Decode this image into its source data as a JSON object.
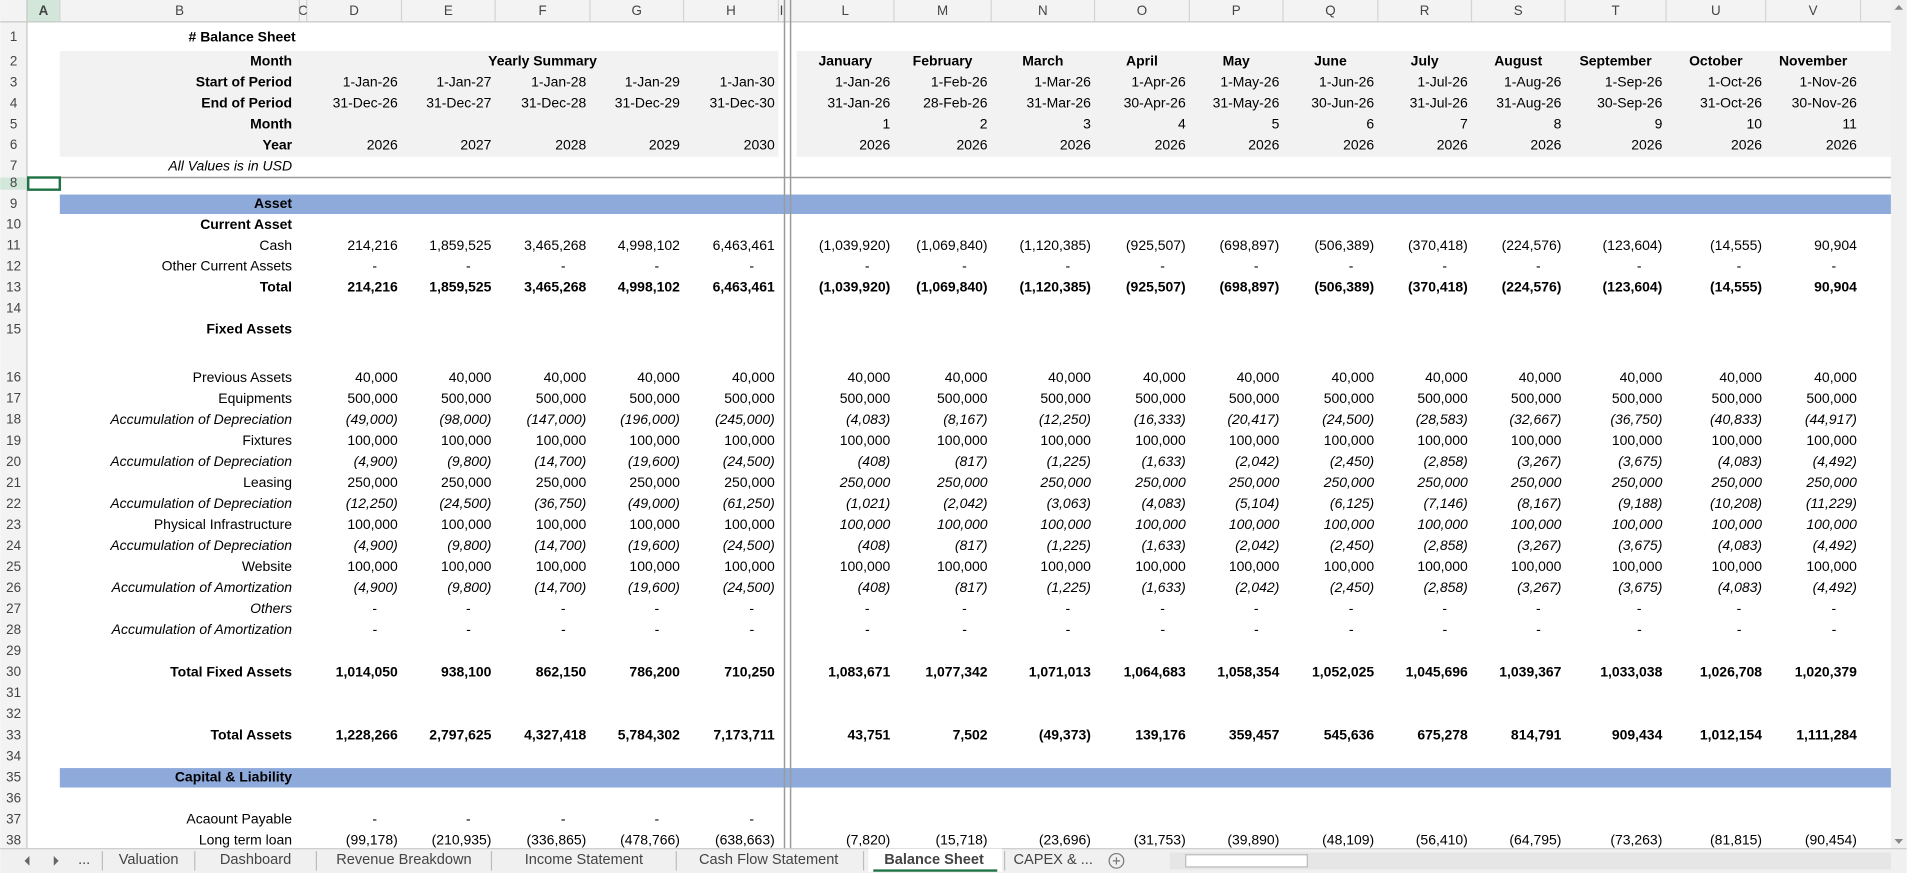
{
  "column_headers": [
    "A",
    "B",
    "C",
    "D",
    "E",
    "F",
    "G",
    "H",
    "I",
    "L",
    "M",
    "N",
    "O",
    "P",
    "Q",
    "R",
    "S",
    "T",
    "U",
    "V"
  ],
  "rows": [
    {
      "n": 1,
      "label": "# Balance Sheet"
    },
    {
      "n": 2,
      "label": "Month",
      "span": "Yearly Summary",
      "monthly": [
        "January",
        "February",
        "March",
        "April",
        "May",
        "June",
        "July",
        "August",
        "September",
        "October",
        "November"
      ]
    },
    {
      "n": 3,
      "label": "Start of Period",
      "yearly": [
        "1-Jan-26",
        "1-Jan-27",
        "1-Jan-28",
        "1-Jan-29",
        "1-Jan-30"
      ],
      "monthly": [
        "1-Jan-26",
        "1-Feb-26",
        "1-Mar-26",
        "1-Apr-26",
        "1-May-26",
        "1-Jun-26",
        "1-Jul-26",
        "1-Aug-26",
        "1-Sep-26",
        "1-Oct-26",
        "1-Nov-26"
      ]
    },
    {
      "n": 4,
      "label": "End of Period",
      "yearly": [
        "31-Dec-26",
        "31-Dec-27",
        "31-Dec-28",
        "31-Dec-29",
        "31-Dec-30"
      ],
      "monthly": [
        "31-Jan-26",
        "28-Feb-26",
        "31-Mar-26",
        "30-Apr-26",
        "31-May-26",
        "30-Jun-26",
        "31-Jul-26",
        "31-Aug-26",
        "30-Sep-26",
        "31-Oct-26",
        "30-Nov-26"
      ]
    },
    {
      "n": 5,
      "label": "Month",
      "monthly": [
        "1",
        "2",
        "3",
        "4",
        "5",
        "6",
        "7",
        "8",
        "9",
        "10",
        "11"
      ]
    },
    {
      "n": 6,
      "label": "Year",
      "yearly": [
        "2026",
        "2027",
        "2028",
        "2029",
        "2030"
      ],
      "monthly": [
        "2026",
        "2026",
        "2026",
        "2026",
        "2026",
        "2026",
        "2026",
        "2026",
        "2026",
        "2026",
        "2026"
      ]
    },
    {
      "n": 7,
      "label": "All Values is in USD"
    },
    {
      "n": 8
    },
    {
      "n": 9,
      "label": "Asset"
    },
    {
      "n": 10,
      "label": "Current Asset"
    },
    {
      "n": 11,
      "label": "Cash",
      "yearly": [
        "214,216",
        "1,859,525",
        "3,465,268",
        "4,998,102",
        "6,463,461"
      ],
      "monthly": [
        "(1,039,920)",
        "(1,069,840)",
        "(1,120,385)",
        "(925,507)",
        "(698,897)",
        "(506,389)",
        "(370,418)",
        "(224,576)",
        "(123,604)",
        "(14,555)",
        "90,904"
      ]
    },
    {
      "n": 12,
      "label": "Other Current Assets",
      "yearly": [
        "-",
        "-",
        "-",
        "-",
        "-"
      ],
      "monthly": [
        "-",
        "-",
        "-",
        "-",
        "-",
        "-",
        "-",
        "-",
        "-",
        "-",
        "-"
      ]
    },
    {
      "n": 13,
      "label": "Total",
      "yearly": [
        "214,216",
        "1,859,525",
        "3,465,268",
        "4,998,102",
        "6,463,461"
      ],
      "monthly": [
        "(1,039,920)",
        "(1,069,840)",
        "(1,120,385)",
        "(925,507)",
        "(698,897)",
        "(506,389)",
        "(370,418)",
        "(224,576)",
        "(123,604)",
        "(14,555)",
        "90,904"
      ]
    },
    {
      "n": 14
    },
    {
      "n": 15,
      "label": "Fixed Assets"
    },
    {
      "n": 16,
      "label": "Previous Assets",
      "yearly": [
        "40,000",
        "40,000",
        "40,000",
        "40,000",
        "40,000"
      ],
      "monthly": [
        "40,000",
        "40,000",
        "40,000",
        "40,000",
        "40,000",
        "40,000",
        "40,000",
        "40,000",
        "40,000",
        "40,000",
        "40,000"
      ]
    },
    {
      "n": 17,
      "label": "Equipments",
      "yearly": [
        "500,000",
        "500,000",
        "500,000",
        "500,000",
        "500,000"
      ],
      "monthly": [
        "500,000",
        "500,000",
        "500,000",
        "500,000",
        "500,000",
        "500,000",
        "500,000",
        "500,000",
        "500,000",
        "500,000",
        "500,000"
      ]
    },
    {
      "n": 18,
      "label": "Accumulation of Depreciation",
      "yearly": [
        "(49,000)",
        "(98,000)",
        "(147,000)",
        "(196,000)",
        "(245,000)"
      ],
      "monthly": [
        "(4,083)",
        "(8,167)",
        "(12,250)",
        "(16,333)",
        "(20,417)",
        "(24,500)",
        "(28,583)",
        "(32,667)",
        "(36,750)",
        "(40,833)",
        "(44,917)"
      ]
    },
    {
      "n": 19,
      "label": "Fixtures",
      "yearly": [
        "100,000",
        "100,000",
        "100,000",
        "100,000",
        "100,000"
      ],
      "monthly": [
        "100,000",
        "100,000",
        "100,000",
        "100,000",
        "100,000",
        "100,000",
        "100,000",
        "100,000",
        "100,000",
        "100,000",
        "100,000"
      ]
    },
    {
      "n": 20,
      "label": "Accumulation of Depreciation",
      "yearly": [
        "(4,900)",
        "(9,800)",
        "(14,700)",
        "(19,600)",
        "(24,500)"
      ],
      "monthly": [
        "(408)",
        "(817)",
        "(1,225)",
        "(1,633)",
        "(2,042)",
        "(2,450)",
        "(2,858)",
        "(3,267)",
        "(3,675)",
        "(4,083)",
        "(4,492)"
      ]
    },
    {
      "n": 21,
      "label": "Leasing",
      "yearly": [
        "250,000",
        "250,000",
        "250,000",
        "250,000",
        "250,000"
      ],
      "monthly": [
        "250,000",
        "250,000",
        "250,000",
        "250,000",
        "250,000",
        "250,000",
        "250,000",
        "250,000",
        "250,000",
        "250,000",
        "250,000"
      ]
    },
    {
      "n": 22,
      "label": "Accumulation of Depreciation",
      "yearly": [
        "(12,250)",
        "(24,500)",
        "(36,750)",
        "(49,000)",
        "(61,250)"
      ],
      "monthly": [
        "(1,021)",
        "(2,042)",
        "(3,063)",
        "(4,083)",
        "(5,104)",
        "(6,125)",
        "(7,146)",
        "(8,167)",
        "(9,188)",
        "(10,208)",
        "(11,229)"
      ]
    },
    {
      "n": 23,
      "label": "Physical Infrastructure",
      "yearly": [
        "100,000",
        "100,000",
        "100,000",
        "100,000",
        "100,000"
      ],
      "monthly": [
        "100,000",
        "100,000",
        "100,000",
        "100,000",
        "100,000",
        "100,000",
        "100,000",
        "100,000",
        "100,000",
        "100,000",
        "100,000"
      ]
    },
    {
      "n": 24,
      "label": "Accumulation of Depreciation",
      "yearly": [
        "(4,900)",
        "(9,800)",
        "(14,700)",
        "(19,600)",
        "(24,500)"
      ],
      "monthly": [
        "(408)",
        "(817)",
        "(1,225)",
        "(1,633)",
        "(2,042)",
        "(2,450)",
        "(2,858)",
        "(3,267)",
        "(3,675)",
        "(4,083)",
        "(4,492)"
      ]
    },
    {
      "n": 25,
      "label": "Website",
      "yearly": [
        "100,000",
        "100,000",
        "100,000",
        "100,000",
        "100,000"
      ],
      "monthly": [
        "100,000",
        "100,000",
        "100,000",
        "100,000",
        "100,000",
        "100,000",
        "100,000",
        "100,000",
        "100,000",
        "100,000",
        "100,000"
      ]
    },
    {
      "n": 26,
      "label": "Accumulation of Amortization",
      "yearly": [
        "(4,900)",
        "(9,800)",
        "(14,700)",
        "(19,600)",
        "(24,500)"
      ],
      "monthly": [
        "(408)",
        "(817)",
        "(1,225)",
        "(1,633)",
        "(2,042)",
        "(2,450)",
        "(2,858)",
        "(3,267)",
        "(3,675)",
        "(4,083)",
        "(4,492)"
      ]
    },
    {
      "n": 27,
      "label": "Others",
      "yearly": [
        "-",
        "-",
        "-",
        "-",
        "-"
      ],
      "monthly": [
        "-",
        "-",
        "-",
        "-",
        "-",
        "-",
        "-",
        "-",
        "-",
        "-",
        "-"
      ]
    },
    {
      "n": 28,
      "label": "Accumulation of Amortization",
      "yearly": [
        "-",
        "-",
        "-",
        "-",
        "-"
      ],
      "monthly": [
        "-",
        "-",
        "-",
        "-",
        "-",
        "-",
        "-",
        "-",
        "-",
        "-",
        "-"
      ]
    },
    {
      "n": 29
    },
    {
      "n": 30,
      "label": "Total Fixed Assets",
      "yearly": [
        "1,014,050",
        "938,100",
        "862,150",
        "786,200",
        "710,250"
      ],
      "monthly": [
        "1,083,671",
        "1,077,342",
        "1,071,013",
        "1,064,683",
        "1,058,354",
        "1,052,025",
        "1,045,696",
        "1,039,367",
        "1,033,038",
        "1,026,708",
        "1,020,379"
      ]
    },
    {
      "n": 31
    },
    {
      "n": 32
    },
    {
      "n": 33,
      "label": "Total Assets",
      "yearly": [
        "1,228,266",
        "2,797,625",
        "4,327,418",
        "5,784,302",
        "7,173,711"
      ],
      "monthly": [
        "43,751",
        "7,502",
        "(49,373)",
        "139,176",
        "359,457",
        "545,636",
        "675,278",
        "814,791",
        "909,434",
        "1,012,154",
        "1,111,284"
      ]
    },
    {
      "n": 34
    },
    {
      "n": 35,
      "label": "Capital & Liability"
    },
    {
      "n": 36
    },
    {
      "n": 37,
      "label": "Acaount Payable",
      "yearly": [
        "-",
        "-",
        "-",
        "-",
        "-"
      ]
    },
    {
      "n": 38,
      "label": "Long term loan",
      "yearly": [
        "(99,178)",
        "(210,935)",
        "(336,865)",
        "(478,766)",
        "(638,663)"
      ],
      "monthly": [
        "(7,820)",
        "(15,718)",
        "(23,696)",
        "(31,753)",
        "(39,890)",
        "(48,109)",
        "(56,410)",
        "(64,795)",
        "(73,263)",
        "(81,815)",
        "(90,454)"
      ]
    }
  ],
  "sheet_tabs": [
    "...",
    "Valuation",
    "Dashboard",
    "Revenue Breakdown",
    "Income Statement",
    "Cash Flow Statement",
    "Balance Sheet",
    "CAPEX & ..."
  ]
}
